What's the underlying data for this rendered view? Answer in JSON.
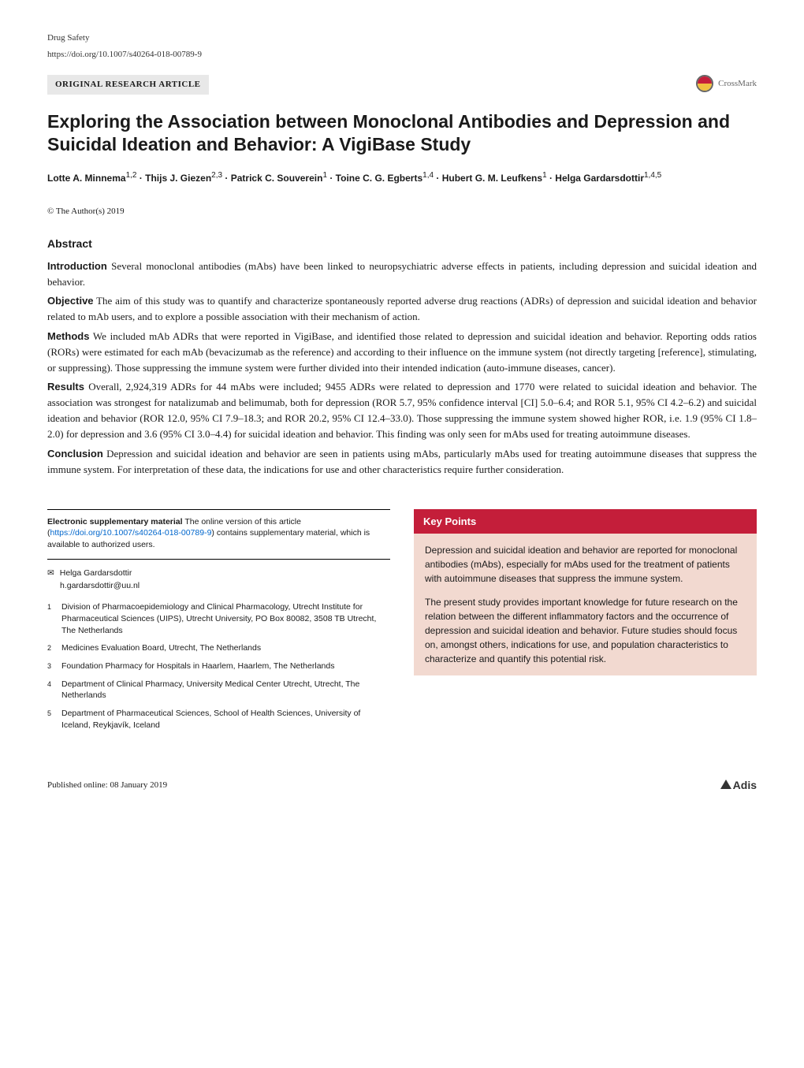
{
  "meta": {
    "journal": "Drug Safety",
    "doi_url": "https://doi.org/10.1007/s40264-018-00789-9",
    "article_type": "ORIGINAL RESEARCH ARTICLE",
    "crossmark_label": "CrossMark"
  },
  "title": "Exploring the Association between Monoclonal Antibodies and Depression and Suicidal Ideation and Behavior: A VigiBase Study",
  "authors_line": "Lotte A. Minnema^{1,2} · Thijs J. Giezen^{2,3} · Patrick C. Souverein^{1} · Toine C. G. Egberts^{1,4} · Hubert G. M. Leufkens^{1} · Helga Gardarsdottir^{1,4,5}",
  "authors": [
    {
      "name": "Lotte A. Minnema",
      "aff": "1,2"
    },
    {
      "name": "Thijs J. Giezen",
      "aff": "2,3"
    },
    {
      "name": "Patrick C. Souverein",
      "aff": "1"
    },
    {
      "name": "Toine C. G. Egberts",
      "aff": "1,4"
    },
    {
      "name": "Hubert G. M. Leufkens",
      "aff": "1"
    },
    {
      "name": "Helga Gardarsdottir",
      "aff": "1,4,5"
    }
  ],
  "copyright": "© The Author(s) 2019",
  "abstract": {
    "heading": "Abstract",
    "sections": [
      {
        "label": "Introduction",
        "text": "Several monoclonal antibodies (mAbs) have been linked to neuropsychiatric adverse effects in patients, including depression and suicidal ideation and behavior."
      },
      {
        "label": "Objective",
        "text": "The aim of this study was to quantify and characterize spontaneously reported adverse drug reactions (ADRs) of depression and suicidal ideation and behavior related to mAb users, and to explore a possible association with their mechanism of action."
      },
      {
        "label": "Methods",
        "text": "We included mAb ADRs that were reported in VigiBase, and identified those related to depression and suicidal ideation and behavior. Reporting odds ratios (RORs) were estimated for each mAb (bevacizumab as the reference) and according to their influence on the immune system (not directly targeting [reference], stimulating, or suppressing). Those suppressing the immune system were further divided into their intended indication (auto-immune diseases, cancer)."
      },
      {
        "label": "Results",
        "text": "Overall, 2,924,319 ADRs for 44 mAbs were included; 9455 ADRs were related to depression and 1770 were related to suicidal ideation and behavior. The association was strongest for natalizumab and belimumab, both for depression (ROR 5.7, 95% confidence interval [CI] 5.0–6.4; and ROR 5.1, 95% CI 4.2–6.2) and suicidal ideation and behavior (ROR 12.0, 95% CI 7.9–18.3; and ROR 20.2, 95% CI 12.4–33.0). Those suppressing the immune system showed higher ROR, i.e. 1.9 (95% CI 1.8–2.0) for depression and 3.6 (95% CI 3.0–4.4) for suicidal ideation and behavior. This finding was only seen for mAbs used for treating autoimmune diseases."
      },
      {
        "label": "Conclusion",
        "text": "Depression and suicidal ideation and behavior are seen in patients using mAbs, particularly mAbs used for treating autoimmune diseases that suppress the immune system. For interpretation of these data, the indications for use and other characteristics require further consideration."
      }
    ]
  },
  "supplementary": {
    "bold_label": "Electronic supplementary material",
    "text_before_link": "The online version of this article (",
    "link_text": "https://doi.org/10.1007/s40264-018-00789-9",
    "text_after_link": ") contains supplementary material, which is available to authorized users."
  },
  "correspondence": {
    "name": "Helga Gardarsdottir",
    "email": "h.gardarsdottir@uu.nl"
  },
  "affiliations": [
    {
      "num": "1",
      "text": "Division of Pharmacoepidemiology and Clinical Pharmacology, Utrecht Institute for Pharmaceutical Sciences (UIPS), Utrecht University, PO Box 80082, 3508 TB Utrecht, The Netherlands"
    },
    {
      "num": "2",
      "text": "Medicines Evaluation Board, Utrecht, The Netherlands"
    },
    {
      "num": "3",
      "text": "Foundation Pharmacy for Hospitals in Haarlem, Haarlem, The Netherlands"
    },
    {
      "num": "4",
      "text": "Department of Clinical Pharmacy, University Medical Center Utrecht, Utrecht, The Netherlands"
    },
    {
      "num": "5",
      "text": "Department of Pharmaceutical Sciences, School of Health Sciences, University of Iceland, Reykjavík, Iceland"
    }
  ],
  "keypoints": {
    "heading": "Key Points",
    "header_bg": "#c41e3a",
    "body_bg": "#f2d9d0",
    "paragraphs": [
      "Depression and suicidal ideation and behavior are reported for monoclonal antibodies (mAbs), especially for mAbs used for the treatment of patients with autoimmune diseases that suppress the immune system.",
      "The present study provides important knowledge for future research on the relation between the different inflammatory factors and the occurrence of depression and suicidal ideation and behavior. Future studies should focus on, amongst others, indications for use, and population characteristics to characterize and quantify this potential risk."
    ]
  },
  "footer": {
    "published": "Published online: 08 January 2019",
    "publisher": "Adis"
  }
}
